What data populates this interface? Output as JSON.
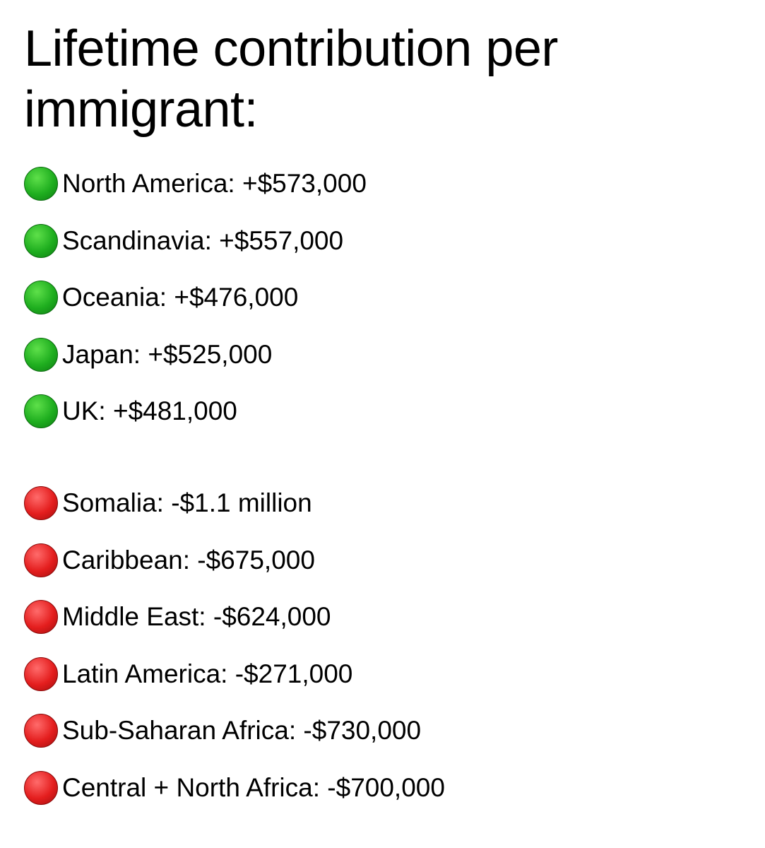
{
  "title": "Lifetime contribution per immigrant:",
  "positive": {
    "color": "#1fae1f",
    "items": [
      {
        "label": "North America: +$573,000"
      },
      {
        "label": "Scandinavia: +$557,000"
      },
      {
        "label": "Oceania: +$476,000"
      },
      {
        "label": "Japan: +$525,000"
      },
      {
        "label": "UK: +$481,000"
      }
    ]
  },
  "negative": {
    "color": "#e41e1e",
    "items": [
      {
        "label": "Somalia: -$1.1 million"
      },
      {
        "label": "Caribbean: -$675,000"
      },
      {
        "label": "Middle East: -$624,000"
      },
      {
        "label": "Latin America: -$271,000"
      },
      {
        "label": "Sub-Saharan Africa: -$730,000"
      },
      {
        "label": "Central + North Africa: -$700,000"
      }
    ]
  },
  "icons": {
    "positive": "green-circle-icon",
    "negative": "red-circle-icon"
  }
}
